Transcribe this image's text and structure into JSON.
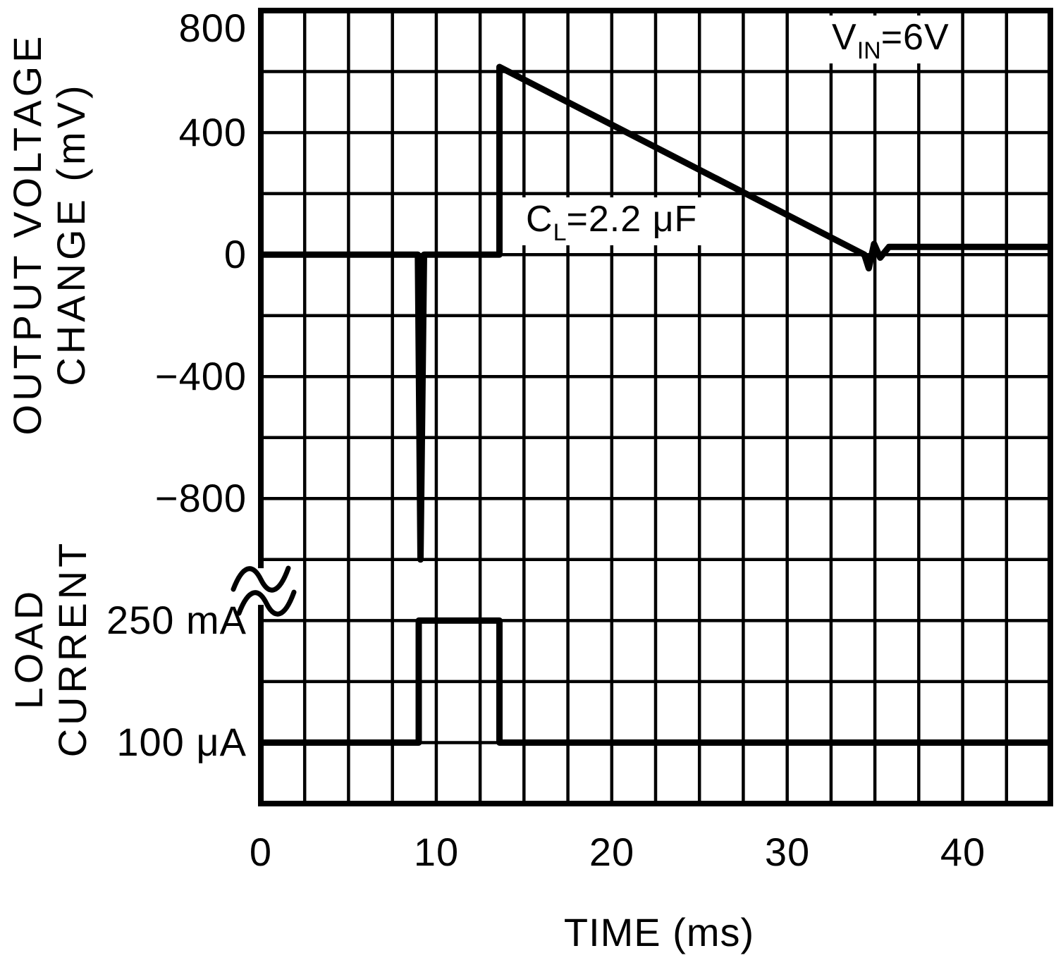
{
  "figure": {
    "background": "#ffffff",
    "line_color": "#000000",
    "grid_color": "#000000"
  },
  "chart_data": {
    "type": "line",
    "title": "",
    "xlabel": "TIME (ms)",
    "grid": {
      "on": true,
      "cols": 18,
      "rows": 13
    },
    "x": {
      "min": 0,
      "max": 45,
      "grid_step_ms": 2.5,
      "ticks": [
        0,
        10,
        20,
        30,
        40
      ],
      "tick_labels": [
        "0",
        "10",
        "20",
        "30",
        "40"
      ]
    },
    "voltage_axis": {
      "label_line1": "OUTPUT VOLTAGE",
      "label_line2": "CHANGE (mV)",
      "tick_labels": [
        "800",
        "400",
        "0",
        "−400",
        "−800"
      ],
      "tick_values_mv": [
        800,
        400,
        0,
        -400,
        -800
      ],
      "tick_rows": [
        0,
        2,
        4,
        6,
        8
      ],
      "zero_row": 4,
      "mv_per_row": 200,
      "range_mv": [
        800,
        -1100
      ]
    },
    "current_axis": {
      "label_line1": "LOAD",
      "label_line2": "CURRENT",
      "axis_break": true,
      "levels": [
        {
          "label": "250 mA",
          "row": 10
        },
        {
          "label": "100 μA",
          "row": 12
        }
      ]
    },
    "series": [
      {
        "name": "output-voltage-change",
        "units": "mV",
        "points_t_mv": [
          [
            0,
            0
          ],
          [
            8.95,
            0
          ],
          [
            9.1,
            -1000
          ],
          [
            9.3,
            0
          ],
          [
            13.6,
            0
          ],
          [
            13.6,
            615
          ],
          [
            34.4,
            0
          ],
          [
            34.65,
            -45
          ],
          [
            34.95,
            35
          ],
          [
            35.3,
            -10
          ],
          [
            35.8,
            25
          ],
          [
            45,
            25
          ]
        ]
      },
      {
        "name": "load-current",
        "points_t_level": [
          [
            0,
            "100 μA"
          ],
          [
            9,
            "100 μA"
          ],
          [
            9,
            "250 mA"
          ],
          [
            13.6,
            "250 mA"
          ],
          [
            13.6,
            "100 μA"
          ],
          [
            45,
            "100 μA"
          ]
        ]
      }
    ],
    "annotations": [
      {
        "id": "vin",
        "base": "V",
        "sub": "IN",
        "rest": "=6V"
      },
      {
        "id": "cl",
        "base": "C",
        "sub": "L",
        "rest": "=2.2 μF"
      }
    ]
  }
}
